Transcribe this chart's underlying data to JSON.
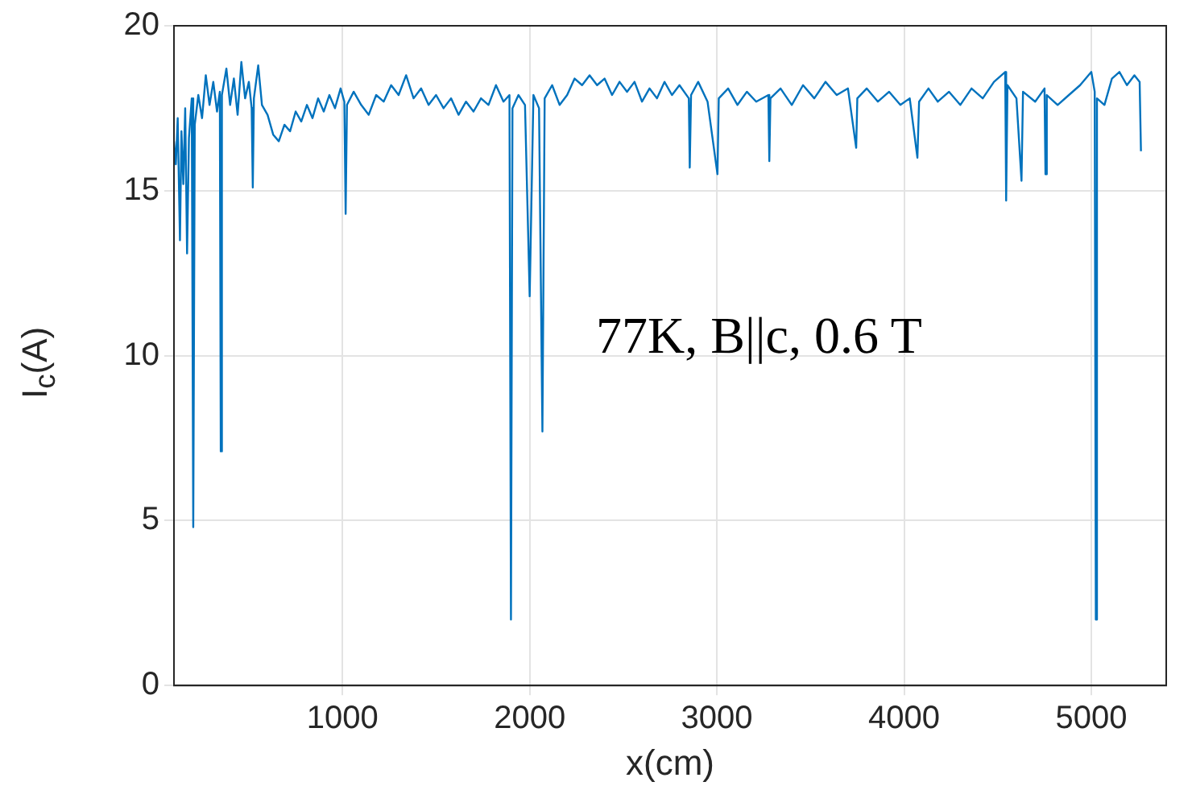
{
  "chart_data": {
    "type": "line",
    "xlabel": "x(cm)",
    "ylabel": "I$_{c}$(A)",
    "annotations": [
      "77K, B||c, 0.6 T"
    ],
    "xlim": [
      100,
      5400
    ],
    "xticks": [
      1000,
      2000,
      3000,
      4000,
      5000
    ],
    "ylim": [
      0,
      20
    ],
    "yticks": [
      0,
      5,
      10,
      15,
      20
    ],
    "grid": true,
    "marker": "none",
    "line_style": "solid",
    "x": [
      100,
      110,
      120,
      132,
      140,
      150,
      160,
      170,
      180,
      195,
      203,
      211,
      230,
      250,
      270,
      290,
      310,
      330,
      345,
      350,
      356,
      380,
      400,
      420,
      440,
      460,
      480,
      500,
      515,
      521,
      527,
      550,
      570,
      600,
      630,
      660,
      690,
      720,
      750,
      780,
      810,
      840,
      870,
      900,
      930,
      960,
      990,
      1010,
      1017,
      1024,
      1060,
      1100,
      1140,
      1180,
      1220,
      1260,
      1300,
      1340,
      1380,
      1420,
      1460,
      1500,
      1540,
      1580,
      1620,
      1660,
      1700,
      1740,
      1780,
      1820,
      1860,
      1892,
      1900,
      1908,
      1940,
      1975,
      2000,
      2020,
      2050,
      2068,
      2080,
      2120,
      2160,
      2200,
      2240,
      2280,
      2320,
      2360,
      2400,
      2440,
      2480,
      2520,
      2560,
      2600,
      2640,
      2680,
      2720,
      2760,
      2800,
      2850,
      2855,
      2862,
      2900,
      2950,
      3003,
      3010,
      3060,
      3110,
      3160,
      3210,
      3275,
      3280,
      3286,
      3340,
      3400,
      3460,
      3520,
      3580,
      3640,
      3700,
      3744,
      3750,
      3800,
      3860,
      3920,
      3980,
      4030,
      4071,
      4080,
      4130,
      4180,
      4240,
      4300,
      4360,
      4420,
      4480,
      4540,
      4545,
      4552,
      4600,
      4627,
      4635,
      4700,
      4750,
      4755,
      4762,
      4820,
      4880,
      4940,
      5000,
      5018,
      5024,
      5030,
      5070,
      5110,
      5150,
      5190,
      5230,
      5258,
      5265
    ],
    "series": [
      {
        "color": "#0072bd",
        "values": [
          16.5,
          15.8,
          17.2,
          13.5,
          16.8,
          15.2,
          17.5,
          13.1,
          16.6,
          17.8,
          4.8,
          17.0,
          17.9,
          17.2,
          18.5,
          17.6,
          18.3,
          17.4,
          18.0,
          7.1,
          17.9,
          18.7,
          17.6,
          18.4,
          17.3,
          18.9,
          17.8,
          18.3,
          17.5,
          15.1,
          17.8,
          18.8,
          17.6,
          17.3,
          16.7,
          16.5,
          17.0,
          16.8,
          17.4,
          17.1,
          17.6,
          17.2,
          17.8,
          17.4,
          17.9,
          17.5,
          18.1,
          17.7,
          14.3,
          17.6,
          18.0,
          17.6,
          17.3,
          17.9,
          17.7,
          18.2,
          17.9,
          18.5,
          17.8,
          18.1,
          17.6,
          17.9,
          17.5,
          17.8,
          17.3,
          17.7,
          17.4,
          17.8,
          17.6,
          18.2,
          17.7,
          17.9,
          2.0,
          17.5,
          17.9,
          17.6,
          11.8,
          17.9,
          17.5,
          7.7,
          17.8,
          18.2,
          17.6,
          17.9,
          18.4,
          18.2,
          18.5,
          18.2,
          18.4,
          17.9,
          18.3,
          18.0,
          18.3,
          17.7,
          18.1,
          17.8,
          18.3,
          17.9,
          18.2,
          17.8,
          15.7,
          17.9,
          18.3,
          17.7,
          15.5,
          17.8,
          18.1,
          17.6,
          18.0,
          17.7,
          17.9,
          15.9,
          17.8,
          18.1,
          17.6,
          18.2,
          17.8,
          18.3,
          17.9,
          18.1,
          16.3,
          17.8,
          18.1,
          17.7,
          18.0,
          17.6,
          17.8,
          16.0,
          17.7,
          18.1,
          17.7,
          18.0,
          17.6,
          18.1,
          17.8,
          18.3,
          18.6,
          14.7,
          18.2,
          17.8,
          15.3,
          18.0,
          17.7,
          18.1,
          15.5,
          17.9,
          17.6,
          17.9,
          18.2,
          18.6,
          18.0,
          2.0,
          17.8,
          17.6,
          18.4,
          18.6,
          18.2,
          18.5,
          18.3,
          16.2
        ]
      }
    ]
  }
}
